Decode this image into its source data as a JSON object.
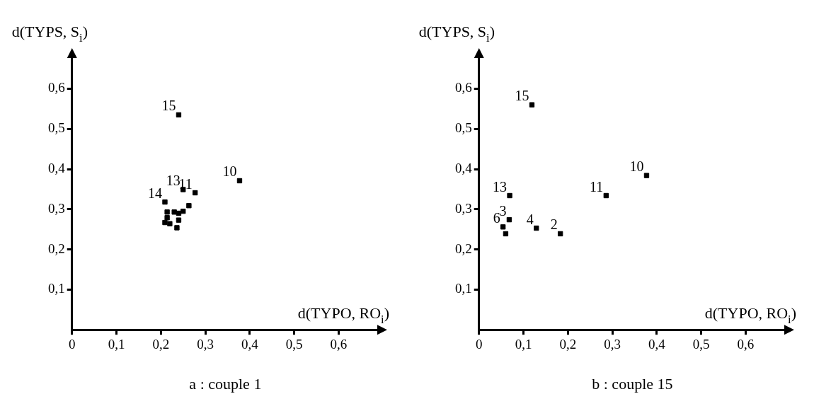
{
  "chart_data": [
    {
      "type": "scatter",
      "title": "a : couple 1",
      "xlabel": "d(TYPO, RO$_{i}$)",
      "ylabel": "d(TYPS, S$_{i}$)",
      "color": "#000000",
      "marker": "square",
      "grid": false,
      "legend": false,
      "x": [
        0.24,
        0.377,
        0.25,
        0.277,
        0.209,
        0.214,
        0.23,
        0.24,
        0.25,
        0.263,
        0.209,
        0.214,
        0.22,
        0.236,
        0.24
      ],
      "values": [
        0.535,
        0.371,
        0.349,
        0.341,
        0.318,
        0.293,
        0.293,
        0.29,
        0.295,
        0.309,
        0.267,
        0.279,
        0.264,
        0.254,
        0.273
      ],
      "annotations": [
        {
          "text": "15",
          "x": 0.24,
          "y": 0.535
        },
        {
          "text": "10",
          "x": 0.377,
          "y": 0.371
        },
        {
          "text": "13",
          "x": 0.25,
          "y": 0.349
        },
        {
          "text": "11",
          "x": 0.277,
          "y": 0.341
        },
        {
          "text": "14",
          "x": 0.209,
          "y": 0.318
        }
      ],
      "xlim": [
        0,
        0.69
      ],
      "ylim": [
        0,
        0.68
      ],
      "xticks": [
        {
          "value": 0,
          "label": "0"
        },
        {
          "value": 0.1,
          "label": "0,1"
        },
        {
          "value": 0.2,
          "label": "0,2"
        },
        {
          "value": 0.3,
          "label": "0,3"
        },
        {
          "value": 0.4,
          "label": "0,4"
        },
        {
          "value": 0.5,
          "label": "0,5"
        },
        {
          "value": 0.6,
          "label": "0,6"
        }
      ],
      "yticks": [
        {
          "value": 0.1,
          "label": "0,1"
        },
        {
          "value": 0.2,
          "label": "0,2"
        },
        {
          "value": 0.3,
          "label": "0,3"
        },
        {
          "value": 0.4,
          "label": "0,4"
        },
        {
          "value": 0.5,
          "label": "0,5"
        },
        {
          "value": 0.6,
          "label": "0,6"
        }
      ]
    },
    {
      "type": "scatter",
      "title": "b : couple 15",
      "xlabel": "d(TYPO, RO$_{i}$)",
      "ylabel": "d(TYPS, S$_{i}$)",
      "color": "#000000",
      "marker": "square",
      "grid": false,
      "legend": false,
      "x": [
        0.119,
        0.377,
        0.286,
        0.069,
        0.068,
        0.054,
        0.06,
        0.129,
        0.183
      ],
      "values": [
        0.56,
        0.384,
        0.334,
        0.334,
        0.274,
        0.256,
        0.239,
        0.253,
        0.239
      ],
      "annotations": [
        {
          "text": "15",
          "x": 0.119,
          "y": 0.56
        },
        {
          "text": "10",
          "x": 0.377,
          "y": 0.384
        },
        {
          "text": "11",
          "x": 0.286,
          "y": 0.334
        },
        {
          "text": "13",
          "x": 0.069,
          "y": 0.334
        },
        {
          "text": "3",
          "x": 0.068,
          "y": 0.274
        },
        {
          "text": "6",
          "x": 0.054,
          "y": 0.256
        },
        {
          "text": "4",
          "x": 0.129,
          "y": 0.253
        },
        {
          "text": "2",
          "x": 0.183,
          "y": 0.239
        }
      ],
      "xlim": [
        0,
        0.69
      ],
      "ylim": [
        0,
        0.68
      ],
      "xticks": [
        {
          "value": 0,
          "label": "0"
        },
        {
          "value": 0.1,
          "label": "0,1"
        },
        {
          "value": 0.2,
          "label": "0,2"
        },
        {
          "value": 0.3,
          "label": "0,3"
        },
        {
          "value": 0.4,
          "label": "0,4"
        },
        {
          "value": 0.5,
          "label": "0,5"
        },
        {
          "value": 0.6,
          "label": "0,6"
        }
      ],
      "yticks": [
        {
          "value": 0.1,
          "label": "0,1"
        },
        {
          "value": 0.2,
          "label": "0,2"
        },
        {
          "value": 0.3,
          "label": "0,3"
        },
        {
          "value": 0.4,
          "label": "0,4"
        },
        {
          "value": 0.5,
          "label": "0,5"
        },
        {
          "value": 0.6,
          "label": "0,6"
        }
      ]
    }
  ]
}
